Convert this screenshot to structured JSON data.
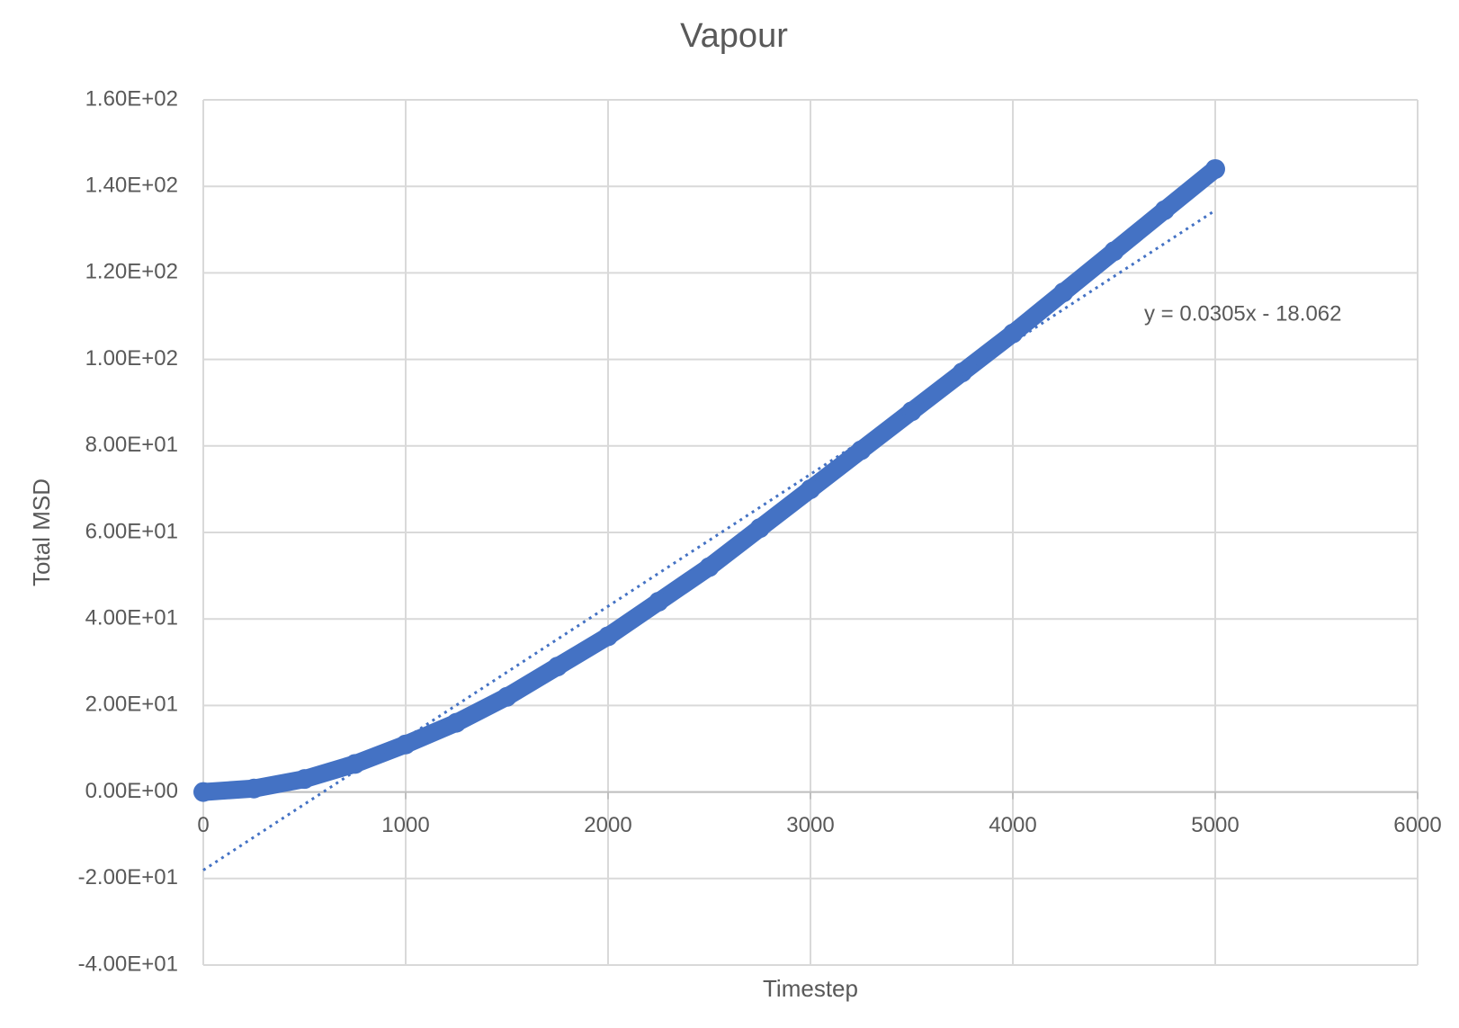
{
  "chart_data": {
    "type": "scatter",
    "title": "Vapour",
    "x_label": "Timestep",
    "y_label": "Total MSD",
    "series": [
      {
        "name": "Total MSD",
        "color": "#4472c4",
        "x": [
          0,
          250,
          500,
          750,
          1000,
          1250,
          1500,
          1750,
          2000,
          2250,
          2500,
          2750,
          3000,
          3250,
          3500,
          3750,
          4000,
          4250,
          4500,
          4750,
          5000
        ],
        "values": [
          0,
          0.8,
          3,
          6.5,
          11,
          16,
          22,
          29,
          36,
          44,
          52,
          61,
          70,
          79,
          88,
          97,
          106,
          115.5,
          125,
          134.5,
          144
        ]
      }
    ],
    "trendline": {
      "label": "y = 0.0305x - 18.062",
      "slope": 0.0305,
      "intercept": -18.062,
      "color": "#4472c4"
    },
    "xlim": [
      0,
      6000
    ],
    "xticks": [
      0,
      1000,
      2000,
      3000,
      4000,
      5000,
      6000
    ],
    "ylim": [
      -40,
      160
    ],
    "yticks": [
      {
        "value": -40,
        "label": "-4.00E+01"
      },
      {
        "value": -20,
        "label": "-2.00E+01"
      },
      {
        "value": 0,
        "label": "0.00E+00"
      },
      {
        "value": 20,
        "label": "2.00E+01"
      },
      {
        "value": 40,
        "label": "4.00E+01"
      },
      {
        "value": 60,
        "label": "6.00E+01"
      },
      {
        "value": 80,
        "label": "8.00E+01"
      },
      {
        "value": 100,
        "label": "1.00E+02"
      },
      {
        "value": 120,
        "label": "1.20E+02"
      },
      {
        "value": 140,
        "label": "1.40E+02"
      },
      {
        "value": 160,
        "label": "1.60E+02"
      }
    ],
    "grid": true
  }
}
